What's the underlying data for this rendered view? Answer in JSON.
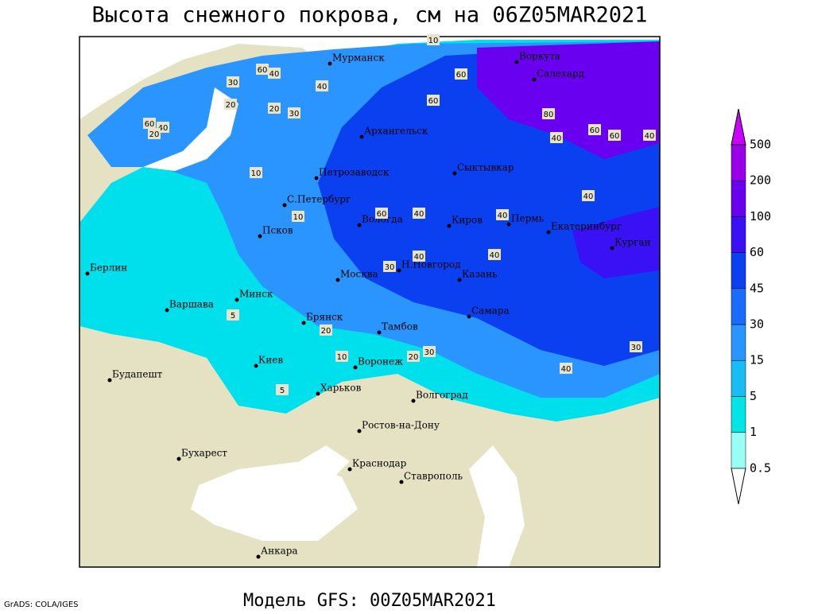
{
  "title": "Высота снежного покрова, см на 06Z05MAR2021",
  "footer": "Модель GFS: 00Z05MAR2021",
  "credit": "GrADS: COLA/IGES",
  "legend": {
    "levels": [
      0.5,
      1,
      5,
      15,
      30,
      45,
      60,
      100,
      200,
      500
    ],
    "colors": [
      "#ffffff",
      "#99fff5",
      "#00e6e6",
      "#18bdf5",
      "#2a95ff",
      "#1a6cff",
      "#0a40f0",
      "#3a10f5",
      "#6a00f0",
      "#9a00e8",
      "#cc00ff"
    ]
  },
  "cities": [
    "Мурманск",
    "Архангельск",
    "Воркута",
    "Салехард",
    "Петрозаводск",
    "Сыктывкар",
    "С.Петербург",
    "Вологда",
    "Киров",
    "Пермь",
    "Екатеринбург",
    "Курган",
    "Псков",
    "Москва",
    "Н.Новгород",
    "Казань",
    "Берлин",
    "Варшава",
    "Минск",
    "Брянск",
    "Тамбов",
    "Самара",
    "Киев",
    "Воронеж",
    "Харьков",
    "Волгоград",
    "Будапешт",
    "Бухарест",
    "Ростов-на-Дону",
    "Краснодар",
    "Ставрополь",
    "Анкара"
  ],
  "contour_labels": [
    10,
    60,
    40,
    30,
    20,
    20,
    30,
    60,
    40,
    20,
    10,
    40,
    60,
    60,
    80,
    60,
    60,
    40,
    40,
    40,
    60,
    40,
    40,
    40,
    30,
    40,
    20,
    10,
    5,
    5,
    10,
    20,
    30,
    40,
    30
  ]
}
